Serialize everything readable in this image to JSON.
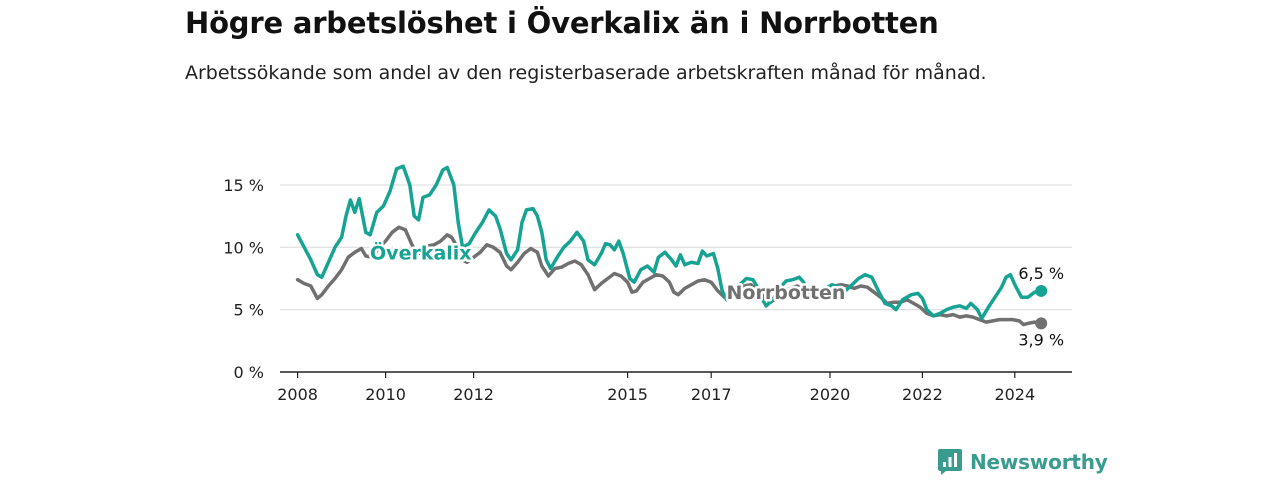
{
  "header": {
    "title": "Högre arbetslöshet i Överkalix än i Norrbotten",
    "subtitle": "Arbetssökande som andel av den registerbaserade arbetskraften månad för månad."
  },
  "brand": {
    "name": "Newsworthy",
    "icon": "newsworthy-logo-icon",
    "color": "#3a9b8f"
  },
  "chart_data": {
    "type": "line",
    "ylim": [
      0,
      17
    ],
    "xlim": [
      2007.6,
      2025.6
    ],
    "y_ticks": [
      {
        "value": 0,
        "label": "0 %"
      },
      {
        "value": 5,
        "label": "5 %"
      },
      {
        "value": 10,
        "label": "10 %"
      },
      {
        "value": 15,
        "label": "15 %"
      }
    ],
    "x_ticks": [
      {
        "value": 2008,
        "label": "2008"
      },
      {
        "value": 2010,
        "label": "2010"
      },
      {
        "value": 2012,
        "label": "2012"
      },
      {
        "value": 2015.5,
        "label": "2015"
      },
      {
        "value": 2017.4,
        "label": "2017"
      },
      {
        "value": 2020.1,
        "label": "2020"
      },
      {
        "value": 2022.2,
        "label": "2022"
      },
      {
        "value": 2024.3,
        "label": "2024"
      }
    ],
    "grid": true,
    "series": [
      {
        "name": "Överkalix",
        "color": "#16a394",
        "end_label": "6,5 %",
        "points": [
          [
            2008.0,
            11.0
          ],
          [
            2008.15,
            10.0
          ],
          [
            2008.3,
            9.0
          ],
          [
            2008.45,
            7.8
          ],
          [
            2008.55,
            7.6
          ],
          [
            2008.7,
            8.8
          ],
          [
            2008.85,
            10.0
          ],
          [
            2009.0,
            10.8
          ],
          [
            2009.1,
            12.5
          ],
          [
            2009.2,
            13.8
          ],
          [
            2009.3,
            12.8
          ],
          [
            2009.4,
            13.9
          ],
          [
            2009.55,
            11.2
          ],
          [
            2009.65,
            11.0
          ],
          [
            2009.8,
            12.8
          ],
          [
            2009.95,
            13.3
          ],
          [
            2010.1,
            14.5
          ],
          [
            2010.25,
            16.3
          ],
          [
            2010.4,
            16.5
          ],
          [
            2010.55,
            15.0
          ],
          [
            2010.65,
            12.5
          ],
          [
            2010.75,
            12.2
          ],
          [
            2010.85,
            14.0
          ],
          [
            2011.0,
            14.2
          ],
          [
            2011.15,
            15.0
          ],
          [
            2011.3,
            16.2
          ],
          [
            2011.4,
            16.4
          ],
          [
            2011.55,
            15.0
          ],
          [
            2011.65,
            12.0
          ],
          [
            2011.75,
            10.0
          ],
          [
            2011.9,
            10.3
          ],
          [
            2012.05,
            11.2
          ],
          [
            2012.2,
            12.0
          ],
          [
            2012.35,
            13.0
          ],
          [
            2012.5,
            12.5
          ],
          [
            2012.6,
            11.5
          ],
          [
            2012.75,
            9.5
          ],
          [
            2012.85,
            9.0
          ],
          [
            2013.0,
            9.8
          ],
          [
            2013.1,
            12.0
          ],
          [
            2013.2,
            13.0
          ],
          [
            2013.35,
            13.1
          ],
          [
            2013.45,
            12.5
          ],
          [
            2013.55,
            11.2
          ],
          [
            2013.65,
            9.0
          ],
          [
            2013.75,
            8.3
          ],
          [
            2013.9,
            9.2
          ],
          [
            2014.05,
            10.0
          ],
          [
            2014.2,
            10.5
          ],
          [
            2014.35,
            11.2
          ],
          [
            2014.5,
            10.5
          ],
          [
            2014.6,
            9.0
          ],
          [
            2014.75,
            8.6
          ],
          [
            2014.9,
            9.5
          ],
          [
            2015.0,
            10.3
          ],
          [
            2015.1,
            10.2
          ],
          [
            2015.2,
            9.8
          ],
          [
            2015.3,
            10.5
          ],
          [
            2015.4,
            9.5
          ],
          [
            2015.55,
            7.5
          ],
          [
            2015.65,
            7.2
          ],
          [
            2015.8,
            8.2
          ],
          [
            2015.95,
            8.5
          ],
          [
            2016.1,
            8.0
          ],
          [
            2016.2,
            9.2
          ],
          [
            2016.35,
            9.6
          ],
          [
            2016.5,
            9.0
          ],
          [
            2016.6,
            8.5
          ],
          [
            2016.7,
            9.4
          ],
          [
            2016.8,
            8.6
          ],
          [
            2016.95,
            8.8
          ],
          [
            2017.1,
            8.7
          ],
          [
            2017.2,
            9.7
          ],
          [
            2017.3,
            9.3
          ],
          [
            2017.45,
            9.5
          ],
          [
            2017.55,
            8.3
          ],
          [
            2017.65,
            6.5
          ],
          [
            2017.75,
            5.8
          ],
          [
            2017.9,
            6.5
          ],
          [
            2018.05,
            7.0
          ],
          [
            2018.2,
            7.5
          ],
          [
            2018.35,
            7.4
          ],
          [
            2018.45,
            6.8
          ],
          [
            2018.5,
            6.2
          ],
          [
            2018.65,
            5.3
          ],
          [
            2018.8,
            5.8
          ],
          [
            2018.95,
            6.7
          ],
          [
            2019.1,
            7.3
          ],
          [
            2019.25,
            7.4
          ],
          [
            2019.4,
            7.6
          ],
          [
            2019.5,
            7.2
          ],
          [
            2019.6,
            6.2
          ],
          [
            2019.75,
            5.8
          ],
          [
            2019.9,
            6.3
          ],
          [
            2020.05,
            6.8
          ],
          [
            2020.15,
            7.0
          ],
          [
            2020.3,
            6.8
          ],
          [
            2020.45,
            6.5
          ],
          [
            2020.6,
            7.0
          ],
          [
            2020.75,
            7.5
          ],
          [
            2020.9,
            7.8
          ],
          [
            2021.05,
            7.6
          ],
          [
            2021.2,
            6.5
          ],
          [
            2021.35,
            5.5
          ],
          [
            2021.5,
            5.3
          ],
          [
            2021.6,
            5.0
          ],
          [
            2021.75,
            5.8
          ],
          [
            2021.95,
            6.2
          ],
          [
            2022.1,
            6.3
          ],
          [
            2022.2,
            5.9
          ],
          [
            2022.3,
            5.0
          ],
          [
            2022.45,
            4.5
          ],
          [
            2022.6,
            4.7
          ],
          [
            2022.75,
            5.0
          ],
          [
            2022.9,
            5.2
          ],
          [
            2023.05,
            5.3
          ],
          [
            2023.2,
            5.1
          ],
          [
            2023.3,
            5.5
          ],
          [
            2023.45,
            5.0
          ],
          [
            2023.55,
            4.3
          ],
          [
            2023.7,
            5.2
          ],
          [
            2023.85,
            6.0
          ],
          [
            2024.0,
            6.8
          ],
          [
            2024.1,
            7.6
          ],
          [
            2024.2,
            7.8
          ],
          [
            2024.3,
            7.0
          ],
          [
            2024.45,
            6.0
          ],
          [
            2024.6,
            6.0
          ],
          [
            2024.75,
            6.4
          ],
          [
            2024.9,
            6.5
          ]
        ]
      },
      {
        "name": "Norrbotten",
        "color": "#707070",
        "end_label": "3,9 %",
        "points": [
          [
            2008.0,
            7.4
          ],
          [
            2008.15,
            7.1
          ],
          [
            2008.3,
            6.9
          ],
          [
            2008.45,
            5.9
          ],
          [
            2008.55,
            6.2
          ],
          [
            2008.7,
            6.9
          ],
          [
            2008.85,
            7.5
          ],
          [
            2009.0,
            8.2
          ],
          [
            2009.15,
            9.2
          ],
          [
            2009.3,
            9.6
          ],
          [
            2009.45,
            9.9
          ],
          [
            2009.55,
            9.3
          ],
          [
            2009.7,
            9.2
          ],
          [
            2009.85,
            10.0
          ],
          [
            2010.0,
            10.5
          ],
          [
            2010.15,
            11.2
          ],
          [
            2010.3,
            11.6
          ],
          [
            2010.45,
            11.4
          ],
          [
            2010.6,
            10.2
          ],
          [
            2010.7,
            9.6
          ],
          [
            2010.8,
            9.5
          ],
          [
            2010.95,
            10.1
          ],
          [
            2011.1,
            10.2
          ],
          [
            2011.25,
            10.5
          ],
          [
            2011.4,
            11.0
          ],
          [
            2011.5,
            10.8
          ],
          [
            2011.6,
            10.2
          ],
          [
            2011.75,
            9.0
          ],
          [
            2011.85,
            8.8
          ],
          [
            2012.0,
            9.2
          ],
          [
            2012.15,
            9.6
          ],
          [
            2012.3,
            10.2
          ],
          [
            2012.45,
            10.0
          ],
          [
            2012.6,
            9.6
          ],
          [
            2012.75,
            8.5
          ],
          [
            2012.85,
            8.2
          ],
          [
            2013.0,
            8.8
          ],
          [
            2013.15,
            9.5
          ],
          [
            2013.3,
            9.9
          ],
          [
            2013.45,
            9.6
          ],
          [
            2013.55,
            8.5
          ],
          [
            2013.7,
            7.7
          ],
          [
            2013.85,
            8.3
          ],
          [
            2014.0,
            8.4
          ],
          [
            2014.15,
            8.7
          ],
          [
            2014.3,
            8.9
          ],
          [
            2014.45,
            8.6
          ],
          [
            2014.6,
            7.8
          ],
          [
            2014.75,
            6.6
          ],
          [
            2014.9,
            7.1
          ],
          [
            2015.05,
            7.5
          ],
          [
            2015.2,
            7.9
          ],
          [
            2015.35,
            7.7
          ],
          [
            2015.5,
            7.2
          ],
          [
            2015.6,
            6.4
          ],
          [
            2015.7,
            6.5
          ],
          [
            2015.85,
            7.2
          ],
          [
            2016.0,
            7.5
          ],
          [
            2016.15,
            7.8
          ],
          [
            2016.3,
            7.7
          ],
          [
            2016.45,
            7.2
          ],
          [
            2016.55,
            6.4
          ],
          [
            2016.65,
            6.2
          ],
          [
            2016.8,
            6.7
          ],
          [
            2016.95,
            7.0
          ],
          [
            2017.1,
            7.3
          ],
          [
            2017.25,
            7.4
          ],
          [
            2017.4,
            7.2
          ],
          [
            2017.55,
            6.5
          ],
          [
            2017.7,
            6.0
          ],
          [
            2017.85,
            6.2
          ],
          [
            2018.0,
            6.6
          ],
          [
            2018.15,
            6.9
          ],
          [
            2018.3,
            7.0
          ],
          [
            2018.45,
            6.6
          ],
          [
            2018.6,
            6.0
          ],
          [
            2018.75,
            5.6
          ],
          [
            2018.9,
            6.0
          ],
          [
            2019.05,
            6.4
          ],
          [
            2019.2,
            6.7
          ],
          [
            2019.35,
            6.9
          ],
          [
            2019.5,
            6.6
          ],
          [
            2019.6,
            6.0
          ],
          [
            2019.75,
            5.8
          ],
          [
            2019.9,
            6.2
          ],
          [
            2020.05,
            6.5
          ],
          [
            2020.2,
            6.9
          ],
          [
            2020.35,
            7.0
          ],
          [
            2020.5,
            6.9
          ],
          [
            2020.65,
            6.7
          ],
          [
            2020.8,
            6.9
          ],
          [
            2020.95,
            6.8
          ],
          [
            2021.1,
            6.4
          ],
          [
            2021.25,
            6.0
          ],
          [
            2021.4,
            5.5
          ],
          [
            2021.55,
            5.6
          ],
          [
            2021.7,
            5.6
          ],
          [
            2021.85,
            5.8
          ],
          [
            2022.0,
            5.5
          ],
          [
            2022.15,
            5.2
          ],
          [
            2022.3,
            4.7
          ],
          [
            2022.45,
            4.5
          ],
          [
            2022.6,
            4.6
          ],
          [
            2022.75,
            4.5
          ],
          [
            2022.9,
            4.6
          ],
          [
            2023.05,
            4.4
          ],
          [
            2023.2,
            4.5
          ],
          [
            2023.35,
            4.4
          ],
          [
            2023.5,
            4.2
          ],
          [
            2023.65,
            4.0
          ],
          [
            2023.8,
            4.1
          ],
          [
            2023.95,
            4.2
          ],
          [
            2024.1,
            4.2
          ],
          [
            2024.25,
            4.2
          ],
          [
            2024.4,
            4.1
          ],
          [
            2024.5,
            3.8
          ],
          [
            2024.6,
            3.9
          ],
          [
            2024.75,
            4.0
          ],
          [
            2024.9,
            3.9
          ]
        ]
      }
    ]
  }
}
